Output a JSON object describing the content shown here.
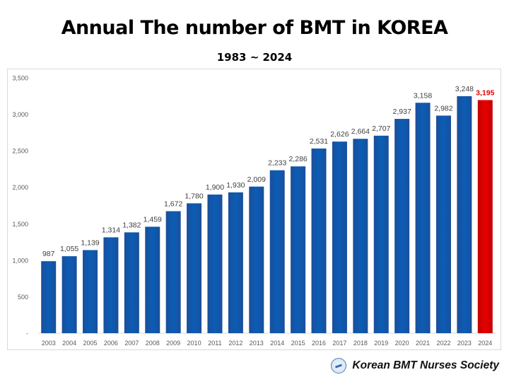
{
  "title": "Annual The number of BMT in KOREA",
  "subtitle": "1983 ~ 2024",
  "footer": {
    "text": "Korean BMT Nurses Society",
    "logo_icon": "society-logo-icon"
  },
  "colors": {
    "bar": "#0b5db5",
    "highlight_bar": "#e60000",
    "highlight_label": "#e60000"
  },
  "chart_data": {
    "type": "bar",
    "categories": [
      "2003",
      "2004",
      "2005",
      "2006",
      "2007",
      "2008",
      "2009",
      "2010",
      "2011",
      "2012",
      "2013",
      "2014",
      "2015",
      "2016",
      "2017",
      "2018",
      "2019",
      "2020",
      "2021",
      "2022",
      "2023",
      "2024"
    ],
    "values": [
      987,
      1055,
      1139,
      1314,
      1382,
      1459,
      1672,
      1780,
      1900,
      1930,
      2009,
      2233,
      2286,
      2531,
      2626,
      2664,
      2707,
      2937,
      3158,
      2982,
      3248,
      3195
    ],
    "value_labels": [
      "987",
      "1,055",
      "1,139",
      "1,314",
      "1,382",
      "1,459",
      "1,672",
      "1,780",
      "1,900",
      "1,930",
      "2,009",
      "2,233",
      "2,286",
      "2,531",
      "2,626",
      "2,664",
      "2,707",
      "2,937",
      "3,158",
      "2,982",
      "3,248",
      "3,195"
    ],
    "y_ticks": [
      0,
      500,
      1000,
      1500,
      2000,
      2500,
      3000,
      3500
    ],
    "y_tick_labels": [
      "-",
      "500",
      "1,000",
      "1,500",
      "2,000",
      "2,500",
      "3,000",
      "3,500"
    ],
    "ylim": [
      0,
      3500
    ],
    "highlight_index": 21,
    "grid": false,
    "xlabel": "",
    "ylabel": ""
  }
}
